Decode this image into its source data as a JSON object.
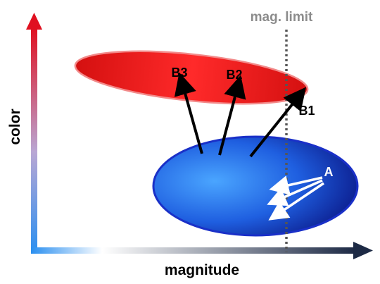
{
  "axes": {
    "x_label": "magnitude",
    "y_label": "color"
  },
  "limit": {
    "label": "mag. limit"
  },
  "regions": {
    "red": {
      "color": "#e01010"
    },
    "blue": {
      "color": "#1f5fe0"
    }
  },
  "labels": {
    "b1": "B1",
    "b2": "B2",
    "b3": "B3",
    "a": "A"
  }
}
